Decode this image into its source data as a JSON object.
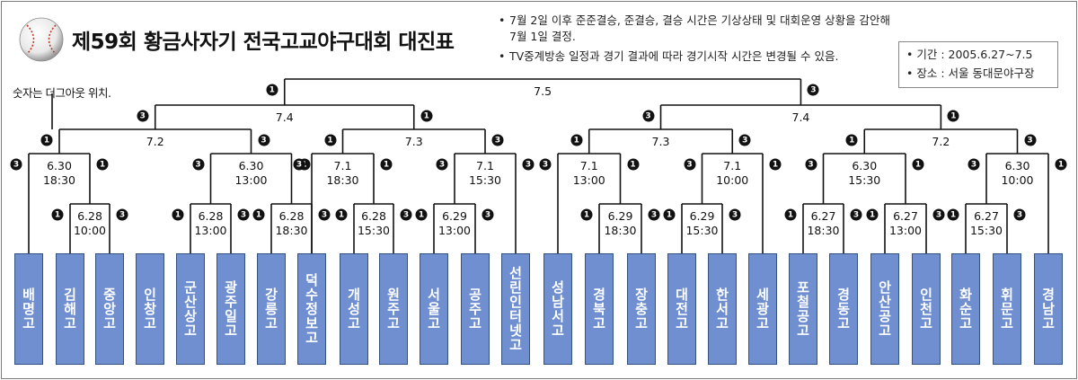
{
  "title": "제59회 황금사자기 전국고교야구대회 대진표",
  "notes": [
    "7월 2일 이후 준준결승, 준결승, 결승 시간은 기상상태 및 대회운영 상황을 감안해 7월 1일 결정.",
    "TV중계방송 일정과 경기 결과에 따라 경기시작 시간은 변경될 수 있음."
  ],
  "info": {
    "period": "• 기간 : 2005.6.27~7.5",
    "venue": "• 장소 : 서울 동대문야구장"
  },
  "dugout_note": "숫자는 더그아웃 위치.",
  "teams": [
    "배명고",
    "김해고",
    "중앙고",
    "인창고",
    "군산상고",
    "광주일고",
    "강릉고",
    "덕수정보고",
    "개성고",
    "원주고",
    "서울고",
    "공주고",
    "선린인터넷고",
    "성남서고",
    "경북고",
    "장충고",
    "대전고",
    "한서고",
    "세광고",
    "포철공고",
    "경동고",
    "안산공고",
    "인천고",
    "화순고",
    "휘문고",
    "경남고"
  ],
  "final": {
    "date": "7.5"
  },
  "semis": [
    {
      "date": "7.4"
    },
    {
      "date": "7.4"
    }
  ],
  "quarters": [
    {
      "date": "7.2"
    },
    {
      "date": "7.3"
    },
    {
      "date": "7.3"
    },
    {
      "date": "7.2"
    }
  ],
  "round16": [
    {
      "date": "6.30",
      "time": "18:30"
    },
    {
      "date": "6.30",
      "time": "13:00"
    },
    {
      "date": "7.1",
      "time": "18:30"
    },
    {
      "date": "7.1",
      "time": "15:30"
    },
    {
      "date": "7.1",
      "time": "13:00"
    },
    {
      "date": "7.1",
      "time": "10:00"
    },
    {
      "date": "6.30",
      "time": "15:30"
    },
    {
      "date": "6.30",
      "time": "10:00"
    }
  ],
  "round32": [
    {
      "date": "6.28",
      "time": "10:00"
    },
    {
      "date": "6.28",
      "time": "13:00"
    },
    {
      "date": "6.28",
      "time": "18:30"
    },
    {
      "date": "6.28",
      "time": "15:30"
    },
    {
      "date": "6.29",
      "time": "13:00"
    },
    {
      "date": "6.29",
      "time": "18:30"
    },
    {
      "date": "6.29",
      "time": "15:30"
    },
    {
      "date": "6.27",
      "time": "18:30"
    },
    {
      "date": "6.27",
      "time": "13:00"
    },
    {
      "date": "6.27",
      "time": "15:30"
    }
  ],
  "dugout_labels": {
    "first": "1",
    "third": "3"
  }
}
